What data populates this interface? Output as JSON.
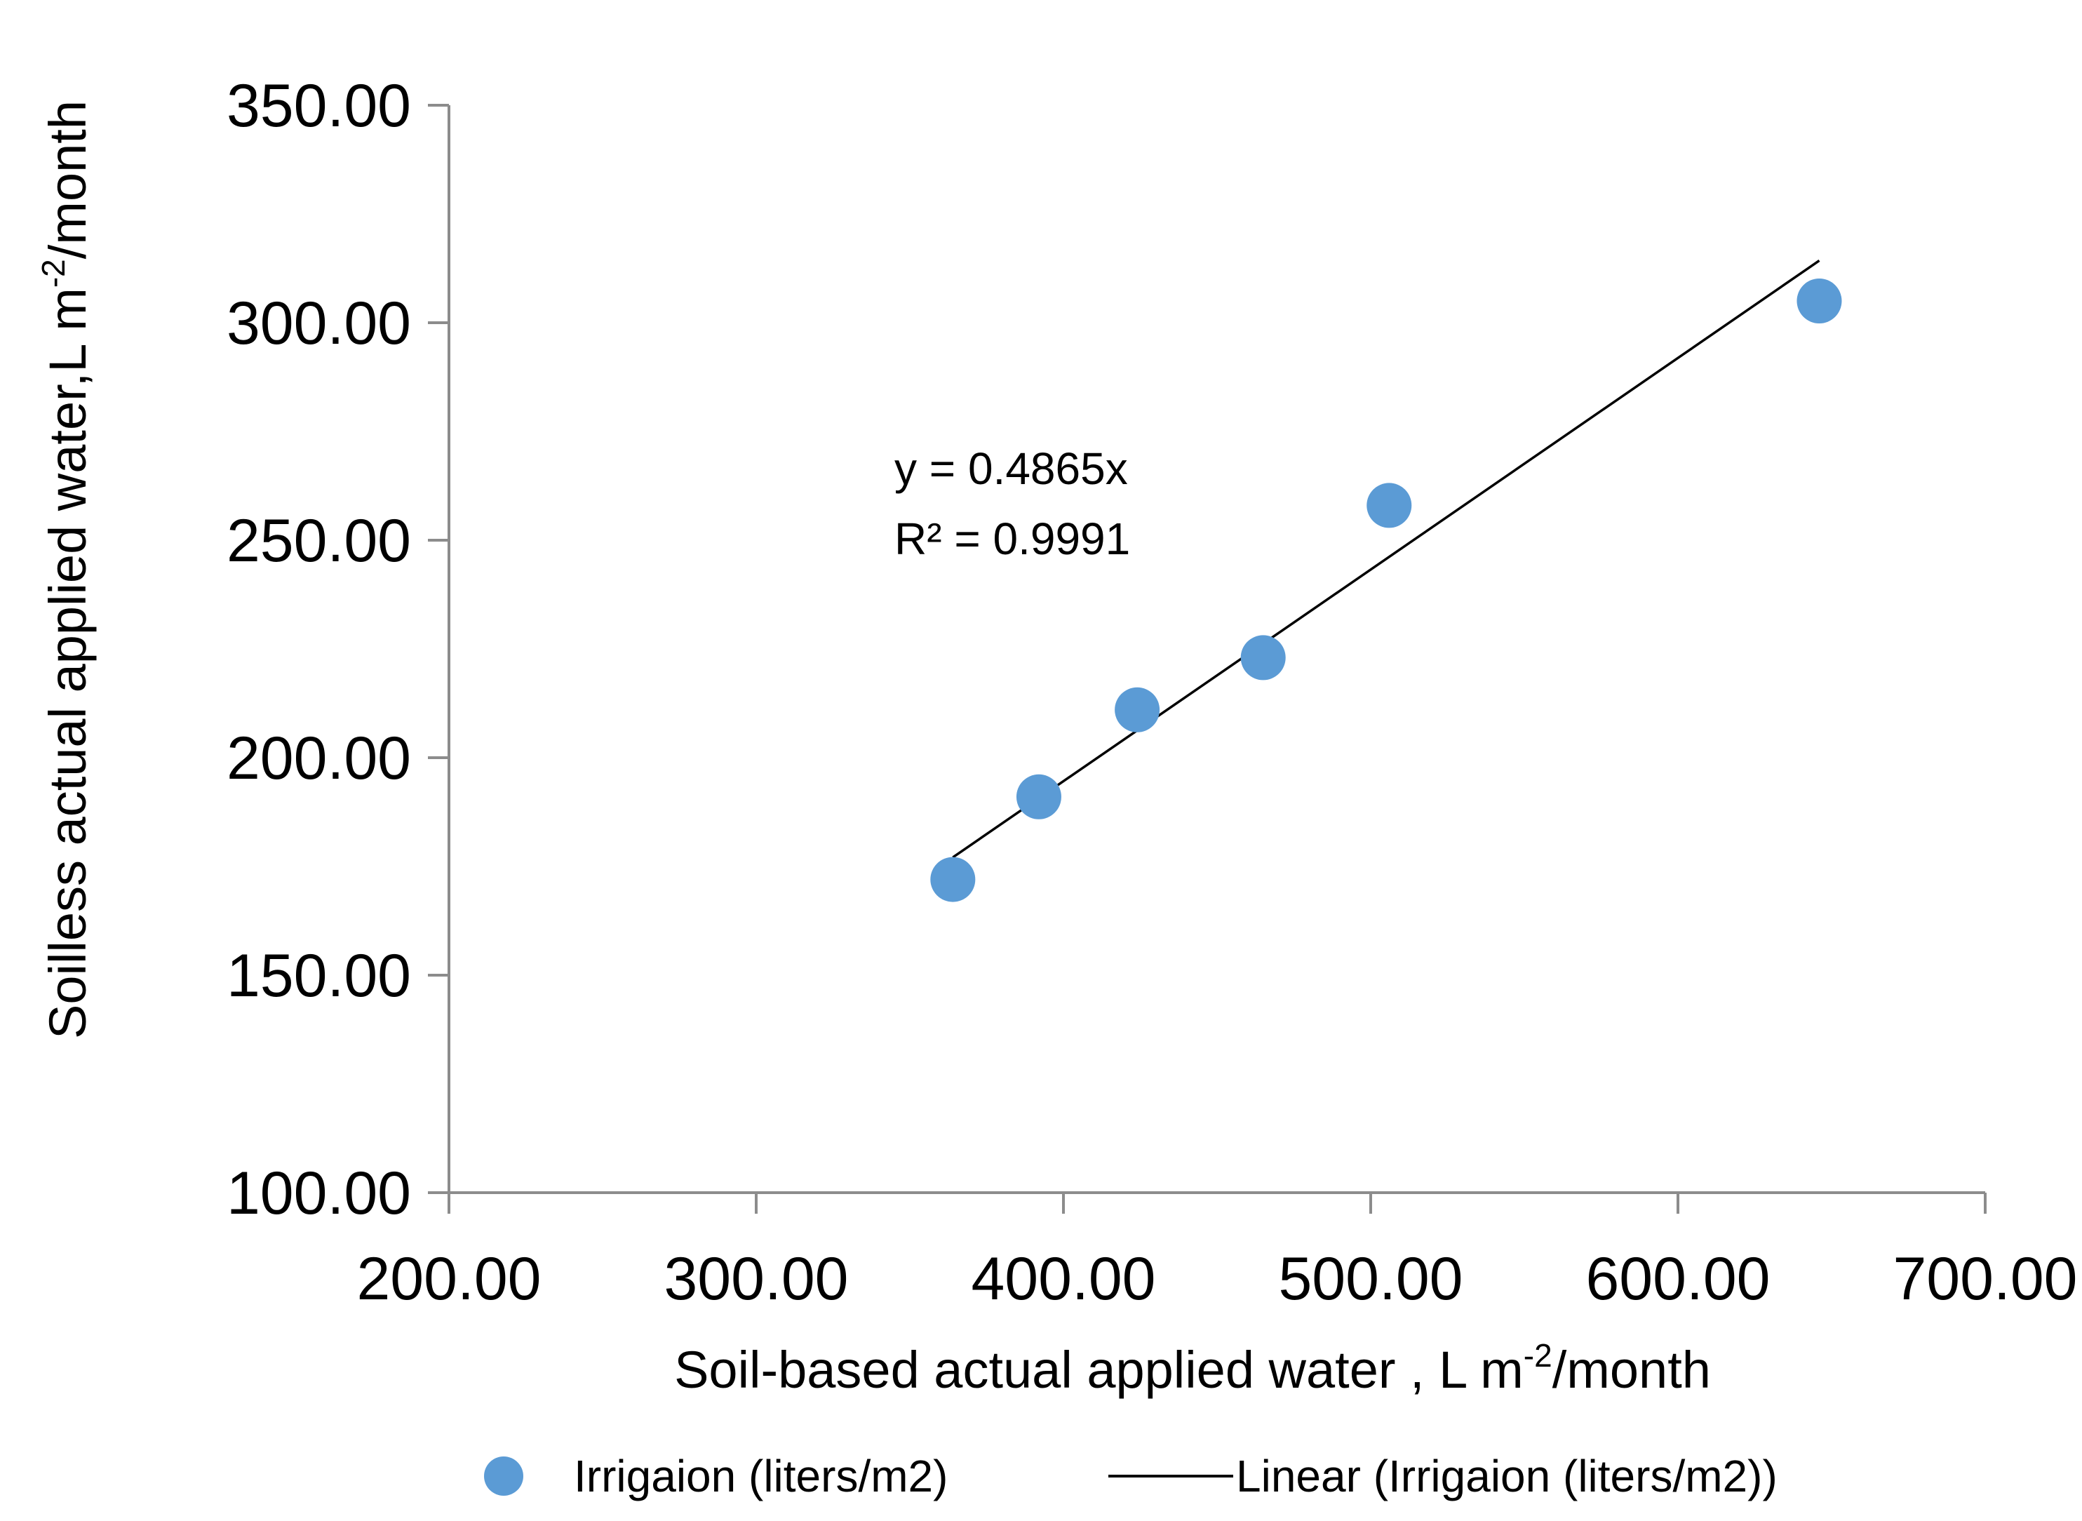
{
  "chart_data": {
    "type": "scatter",
    "title": "",
    "xlabel": {
      "main": "Soil-based actual applied water , L m",
      "sup": "-2",
      "tail": "/month"
    },
    "ylabel": {
      "main": "Soilless actual applied water,L m",
      "sup": "-2",
      "tail": "/month"
    },
    "xlim": [
      200,
      700
    ],
    "ylim": [
      100,
      350
    ],
    "x_ticks": [
      200,
      300,
      400,
      500,
      600,
      700
    ],
    "y_ticks": [
      100,
      150,
      200,
      250,
      300,
      350
    ],
    "x_tick_labels": [
      "200.00",
      "300.00",
      "400.00",
      "500.00",
      "600.00",
      "700.00"
    ],
    "y_tick_labels": [
      "100.00",
      "150.00",
      "200.00",
      "250.00",
      "300.00",
      "350.00"
    ],
    "grid": false,
    "series": [
      {
        "name": "Irrigaion (liters/m2)",
        "kind": "scatter",
        "color": "#5B9BD5",
        "points": [
          {
            "x": 364,
            "y": 172
          },
          {
            "x": 392,
            "y": 191
          },
          {
            "x": 424,
            "y": 211
          },
          {
            "x": 465,
            "y": 223
          },
          {
            "x": 506,
            "y": 258
          },
          {
            "x": 646,
            "y": 305
          }
        ]
      },
      {
        "name": "Linear (Irrigaion (liters/m2))",
        "kind": "trendline",
        "color": "#000000",
        "slope": 0.4865,
        "intercept": 0,
        "x_range": [
          364,
          646
        ]
      }
    ],
    "annotations": {
      "equation": "y = 0.4865x",
      "r2_label": "R² = 0.9991"
    },
    "legend_position": "bottom"
  }
}
